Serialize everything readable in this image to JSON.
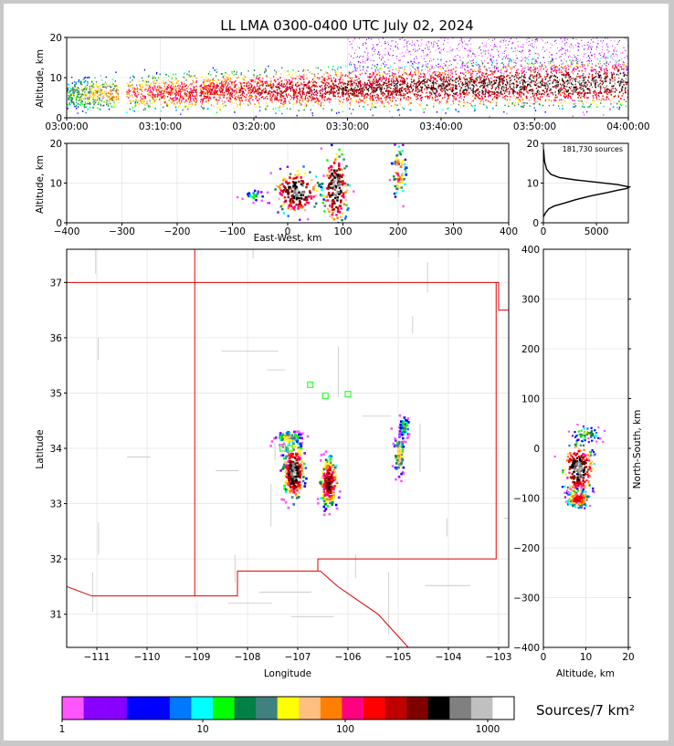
{
  "title": "LL LMA 0300-0400 UTC July 02, 2024",
  "chart_data": [
    {
      "type": "scatter",
      "id": "time-height",
      "ylabel": "Altitude, km",
      "xlim": [
        "03:00:00",
        "04:00:00"
      ],
      "ylim": [
        0,
        20
      ],
      "x_ticks": [
        "03:00:00",
        "03:10:00",
        "03:20:00",
        "03:30:00",
        "03:40:00",
        "03:50:00",
        "04:00:00"
      ],
      "y_ticks": [
        0,
        10,
        20
      ],
      "gaps": [
        [
          "03:05:30",
          "03:06:20"
        ],
        [
          "03:13:50",
          "03:14:10"
        ]
      ]
    },
    {
      "type": "heatmap",
      "id": "east-west-altitude",
      "xlabel": "East-West, km",
      "ylabel": "Altitude, km",
      "xlim": [
        -400,
        400
      ],
      "ylim": [
        0,
        20
      ],
      "x_ticks": [
        -400,
        -300,
        -200,
        -100,
        0,
        100,
        200,
        300,
        400
      ],
      "y_ticks": [
        0,
        10,
        20
      ],
      "cells": [
        {
          "x": 15,
          "y": 8,
          "wx": 45,
          "wy": 6,
          "peak": 1000
        },
        {
          "x": 85,
          "y": 9,
          "wx": 25,
          "wy": 10,
          "peak": 1000
        },
        {
          "x": 200,
          "y": 13,
          "wx": 15,
          "wy": 8,
          "peak": 150
        },
        {
          "x": -60,
          "y": 7,
          "wx": 25,
          "wy": 2,
          "peak": 20
        }
      ]
    },
    {
      "type": "line",
      "id": "altitude-histogram",
      "annotation": "181,730 sources",
      "xlim": [
        0,
        8000
      ],
      "ylim": [
        0,
        20
      ],
      "x_ticks": [
        0,
        5000
      ],
      "y_ticks": [
        0,
        10,
        20
      ],
      "x": [
        0,
        200,
        500,
        1000,
        2000,
        3000,
        4500,
        6000,
        7000,
        7800,
        8100,
        7000,
        5000,
        3000,
        1500,
        700,
        300,
        100,
        20
      ],
      "y": [
        1.5,
        2.5,
        3.5,
        4.2,
        5.0,
        5.8,
        6.8,
        7.6,
        8.2,
        8.6,
        9.0,
        9.6,
        10.2,
        10.8,
        11.4,
        12.2,
        13.5,
        15.5,
        18.5
      ]
    },
    {
      "type": "heatmap",
      "id": "plan-view",
      "xlabel": "Longitude",
      "ylabel": "Latitude",
      "xlim": [
        -111.6,
        -102.8
      ],
      "ylim": [
        30.4,
        37.6
      ],
      "x_ticks": [
        -111,
        -110,
        -109,
        -108,
        -107,
        -106,
        -105,
        -104,
        -103
      ],
      "y_ticks": [
        31,
        32,
        33,
        34,
        35,
        36,
        37
      ],
      "cells": [
        {
          "x": -107.1,
          "y": 33.6,
          "wx": 0.22,
          "wy": 0.55,
          "peak": 1000
        },
        {
          "x": -106.4,
          "y": 33.4,
          "wx": 0.2,
          "wy": 0.5,
          "peak": 500
        },
        {
          "x": -105.0,
          "y": 33.9,
          "wx": 0.12,
          "wy": 0.45,
          "peak": 80
        },
        {
          "x": -107.2,
          "y": 34.2,
          "wx": 0.3,
          "wy": 0.15,
          "peak": 60
        },
        {
          "x": -104.9,
          "y": 34.4,
          "wx": 0.12,
          "wy": 0.25,
          "peak": 30
        }
      ],
      "stations": [
        {
          "lon": -106.75,
          "lat": 35.15
        },
        {
          "lon": -106.45,
          "lat": 34.95
        },
        {
          "lon": -106.0,
          "lat": 34.98
        },
        {
          "lon": -107.3,
          "lat": 34.0
        },
        {
          "lon": -107.15,
          "lat": 34.0
        }
      ]
    },
    {
      "type": "heatmap",
      "id": "altitude-north-south",
      "xlabel": "Altitude, km",
      "ylabel": "North-South, km",
      "xlim": [
        0,
        20
      ],
      "ylim": [
        -400,
        400
      ],
      "x_ticks": [
        0,
        10,
        20
      ],
      "y_ticks": [
        -400,
        -300,
        -200,
        -100,
        0,
        100,
        200,
        300,
        400
      ],
      "cells": [
        {
          "x": 8,
          "y": -40,
          "wx": 4,
          "wy": 55,
          "peak": 1000
        },
        {
          "x": 8,
          "y": -100,
          "wx": 3,
          "wy": 20,
          "peak": 300
        },
        {
          "x": 10,
          "y": 30,
          "wx": 4,
          "wy": 20,
          "peak": 40
        }
      ]
    }
  ],
  "colorbar": {
    "label": "Sources/7 km²",
    "ticks": [
      "1",
      "10",
      "100",
      "1000"
    ],
    "colors": [
      "#ff55ff",
      "#8800ff",
      "#8800ff",
      "#0000ff",
      "#0000ff",
      "#0077ff",
      "#00ffff",
      "#00ff00",
      "#008044",
      "#408080",
      "#ffff00",
      "#ffbf80",
      "#ff8000",
      "#ff0080",
      "#ff0000",
      "#c00000",
      "#800000",
      "#000000",
      "#808080",
      "#c0c0c0",
      "#ffffff"
    ]
  }
}
